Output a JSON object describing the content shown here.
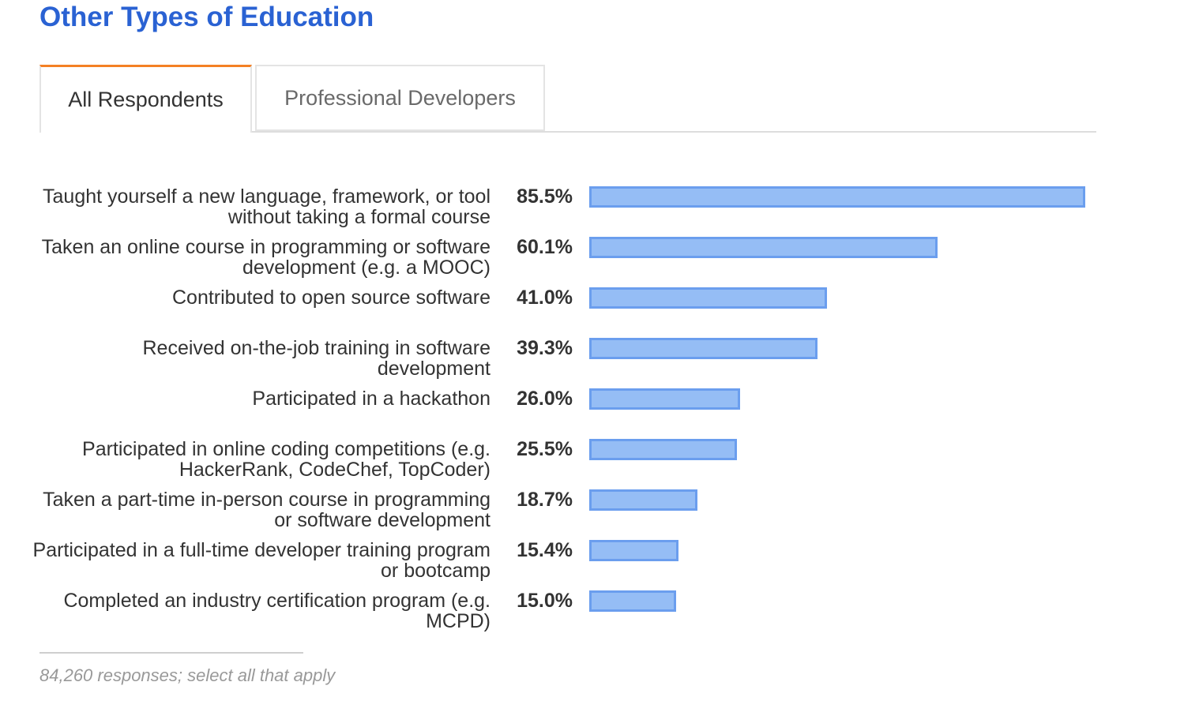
{
  "title": "Other Types of Education",
  "tabs": [
    {
      "label": "All Respondents",
      "active": true
    },
    {
      "label": "Professional Developers",
      "active": false
    }
  ],
  "colors": {
    "title": "#2a62d3",
    "active_tab_accent": "#f48024",
    "bar_fill": "#95bdf5",
    "bar_border": "#6b9eee"
  },
  "chart_data": {
    "type": "bar",
    "orientation": "horizontal",
    "unit": "%",
    "xlim": [
      0,
      85.5
    ],
    "categories": [
      "Taught yourself a new language, framework, or tool without taking a formal course",
      "Taken an online course in programming or software development (e.g. a MOOC)",
      "Contributed to open source software",
      "Received on-the-job training in software development",
      "Participated in a hackathon",
      "Participated in online coding competitions (e.g. HackerRank, CodeChef, TopCoder)",
      "Taken a part-time in-person course in programming or software development",
      "Participated in a full-time developer training program or bootcamp",
      "Completed an industry certification program (e.g. MCPD)"
    ],
    "values": [
      85.5,
      60.1,
      41.0,
      39.3,
      26.0,
      25.5,
      18.7,
      15.4,
      15.0
    ],
    "value_labels": [
      "85.5%",
      "60.1%",
      "41.0%",
      "39.3%",
      "26.0%",
      "25.5%",
      "18.7%",
      "15.4%",
      "15.0%"
    ]
  },
  "footnote": "84,260 responses; select all that apply"
}
